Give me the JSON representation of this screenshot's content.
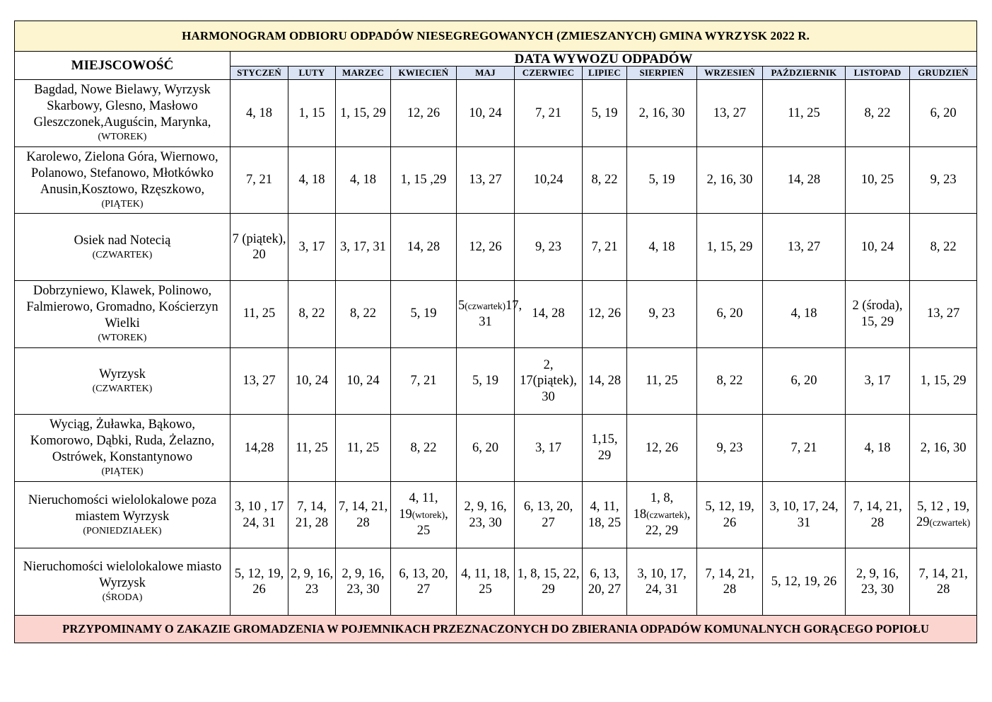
{
  "title": "HARMONOGRAM ODBIORU ODPADÓW NIESEGREGOWANYCH (ZMIESZANYCH) GMINA WYRZYSK 2022 R.",
  "headers": {
    "locality": "MIEJSCOWOŚĆ",
    "dates": "DATA WYWOZU ODPADÓW"
  },
  "months": [
    "STYCZEŃ",
    "LUTY",
    "MARZEC",
    "KWIECIEŃ",
    "MAJ",
    "CZERWIEC",
    "LIPIEC",
    "SIERPIEŃ",
    "WRZESIEŃ",
    "PAŹDZIERNIK",
    "LISTOPAD",
    "GRUDZIEŃ"
  ],
  "rows": [
    {
      "locality": "Bagdad, Nowe Bielawy, Wyrzysk Skarbowy, Glesno, Masłowo Gleszczonek,Auguścin, Marynka,",
      "weekday": "(WTOREK)",
      "dates": [
        {
          "text": "4, 18"
        },
        {
          "text": "1, 15"
        },
        {
          "text": "1, 15, 29"
        },
        {
          "text": "12, 26"
        },
        {
          "text": "10, 24"
        },
        {
          "text": "7, 21"
        },
        {
          "text": "5, 19"
        },
        {
          "text": "2, 16, 30"
        },
        {
          "text": "13, 27"
        },
        {
          "text": "11, 25"
        },
        {
          "text": "8, 22"
        },
        {
          "text": "6, 20"
        }
      ]
    },
    {
      "locality": "Karolewo, Zielona Góra, Wiernowo, Polanowo, Stefanowo, Młotkówko Anusin,Kosztowo, Rzęszkowo,",
      "weekday": "(PIĄTEK)",
      "dates": [
        {
          "text": "7, 21"
        },
        {
          "text": "4, 18"
        },
        {
          "text": "4, 18"
        },
        {
          "text": "1, 15 ,29"
        },
        {
          "text": "13, 27"
        },
        {
          "text": "10,24"
        },
        {
          "text": "8, 22"
        },
        {
          "text": "5, 19"
        },
        {
          "text": "2, 16, 30"
        },
        {
          "text": "14, 28"
        },
        {
          "text": "10, 25"
        },
        {
          "text": "9, 23"
        }
      ]
    },
    {
      "locality": "Osiek nad Notecią",
      "weekday": "(CZWARTEK)",
      "dates": [
        {
          "text": "7 (piątek), 20"
        },
        {
          "text": "3, 17"
        },
        {
          "text": "3, 17, 31"
        },
        {
          "text": "14, 28"
        },
        {
          "text": "12, 26"
        },
        {
          "text": "9, 23"
        },
        {
          "text": "7, 21"
        },
        {
          "text": "4, 18"
        },
        {
          "text": "1, 15, 29"
        },
        {
          "text": "13, 27"
        },
        {
          "text": "10, 24"
        },
        {
          "text": "8, 22"
        }
      ]
    },
    {
      "locality": "Dobrzyniewo, Klawek, Polinowo, Falmierowo, Gromadno, Kościerzyn Wielki",
      "weekday": "(WTOREK)",
      "dates": [
        {
          "text": "11, 25"
        },
        {
          "text": "8, 22"
        },
        {
          "text": "8, 22"
        },
        {
          "text": "5, 19"
        },
        {
          "text": "5",
          "note": "(czwartek)",
          "tail": "17, 31"
        },
        {
          "text": "14, 28"
        },
        {
          "text": "12, 26"
        },
        {
          "text": "9, 23"
        },
        {
          "text": "6, 20"
        },
        {
          "text": "4, 18"
        },
        {
          "text": "2 (środa), 15, 29"
        },
        {
          "text": "13, 27"
        }
      ]
    },
    {
      "locality": "Wyrzysk",
      "weekday": "(CZWARTEK)",
      "dates": [
        {
          "text": "13, 27"
        },
        {
          "text": "10, 24"
        },
        {
          "text": "10, 24"
        },
        {
          "text": "7, 21"
        },
        {
          "text": "5, 19"
        },
        {
          "text": "2, 17(piątek), 30"
        },
        {
          "text": "14, 28"
        },
        {
          "text": "11, 25"
        },
        {
          "text": "8, 22"
        },
        {
          "text": "6, 20"
        },
        {
          "text": "3, 17"
        },
        {
          "text": "1, 15, 29"
        }
      ]
    },
    {
      "locality": "Wyciąg, Żuławka, Bąkowo, Komorowo, Dąbki, Ruda, Żelazno, Ostrówek, Konstantynowo",
      "weekday": "(PIĄTEK)",
      "dates": [
        {
          "text": "14,28"
        },
        {
          "text": "11, 25"
        },
        {
          "text": "11, 25"
        },
        {
          "text": "8, 22"
        },
        {
          "text": "6, 20"
        },
        {
          "text": "3, 17"
        },
        {
          "text": "1,15, 29"
        },
        {
          "text": "12, 26"
        },
        {
          "text": "9, 23"
        },
        {
          "text": "7, 21"
        },
        {
          "text": "4, 18"
        },
        {
          "text": "2, 16, 30"
        }
      ]
    },
    {
      "locality": "Nieruchomości wielolokalowe poza miastem Wyrzysk",
      "weekday": "(PONIEDZIAŁEK)",
      "dates": [
        {
          "text": "3, 10 , 17 24, 31"
        },
        {
          "text": "7, 14, 21, 28"
        },
        {
          "text": "7, 14, 21, 28"
        },
        {
          "text": "4, 11, 19",
          "note": "(wtorek)",
          "tail": ", 25"
        },
        {
          "text": "2, 9, 16, 23, 30"
        },
        {
          "text": "6, 13, 20, 27"
        },
        {
          "text": "4, 11, 18, 25"
        },
        {
          "text": "1, 8, 18",
          "note": "(czwartek)",
          "tail": ", 22, 29"
        },
        {
          "text": "5, 12, 19, 26"
        },
        {
          "text": "3, 10, 17, 24, 31"
        },
        {
          "text": "7, 14, 21, 28"
        },
        {
          "text": "5, 12 , 19, 29",
          "note": "(czwartek)",
          "tail": ""
        }
      ]
    },
    {
      "locality": "Nieruchomości wielolokalowe miasto Wyrzysk",
      "weekday": "(ŚRODA)",
      "dates": [
        {
          "text": "5, 12, 19, 26"
        },
        {
          "text": "2, 9, 16, 23"
        },
        {
          "text": "2, 9, 16, 23, 30"
        },
        {
          "text": "6, 13, 20, 27"
        },
        {
          "text": "4, 11, 18, 25"
        },
        {
          "text": "1, 8, 15, 22, 29"
        },
        {
          "text": "6, 13, 20, 27"
        },
        {
          "text": "3, 10, 17, 24, 31"
        },
        {
          "text": "7, 14, 21, 28"
        },
        {
          "text": "5, 12, 19, 26"
        },
        {
          "text": "2, 9, 16, 23, 30"
        },
        {
          "text": "7, 14, 21, 28"
        }
      ]
    }
  ],
  "footer": "PRZYPOMINAMY O ZAKAZIE GROMADZENIA W POJEMNIKACH PRZEZNACZONYCH DO ZBIERANIA ODPADÓW KOMUNALNYCH GORĄCEGO POPIOŁU"
}
